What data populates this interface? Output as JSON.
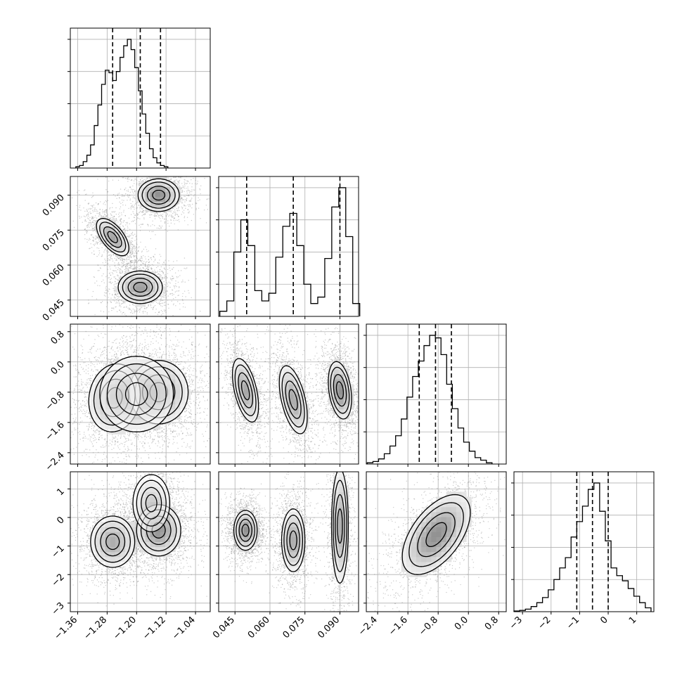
{
  "figure": {
    "type": "corner-plot",
    "grid": true,
    "histogram_color": "#000000",
    "density_color": "#000000",
    "scatter_color": "#808080"
  },
  "chart_data": [
    {
      "type": "histogram",
      "panel": "hist-param-1",
      "x_range": [
        -1.38,
        -1.0
      ],
      "ticks": [
        -1.36,
        -1.28,
        -1.2,
        -1.12,
        -1.04
      ],
      "tick_labels": [
        "−1.36",
        "−1.28",
        "−1.20",
        "−1.12",
        "−1.04"
      ],
      "quantiles": [
        -1.265,
        -1.19,
        -1.135
      ],
      "bins": [
        {
          "x": -1.36,
          "count": 0.01
        },
        {
          "x": -1.35,
          "count": 0.02
        },
        {
          "x": -1.34,
          "count": 0.05
        },
        {
          "x": -1.33,
          "count": 0.1
        },
        {
          "x": -1.32,
          "count": 0.18
        },
        {
          "x": -1.31,
          "count": 0.33
        },
        {
          "x": -1.3,
          "count": 0.49
        },
        {
          "x": -1.29,
          "count": 0.65
        },
        {
          "x": -1.28,
          "count": 0.76
        },
        {
          "x": -1.27,
          "count": 0.74
        },
        {
          "x": -1.26,
          "count": 0.68
        },
        {
          "x": -1.25,
          "count": 0.75
        },
        {
          "x": -1.24,
          "count": 0.86
        },
        {
          "x": -1.23,
          "count": 0.95
        },
        {
          "x": -1.22,
          "count": 1.0
        },
        {
          "x": -1.21,
          "count": 0.92
        },
        {
          "x": -1.2,
          "count": 0.78
        },
        {
          "x": -1.19,
          "count": 0.6
        },
        {
          "x": -1.18,
          "count": 0.42
        },
        {
          "x": -1.17,
          "count": 0.27
        },
        {
          "x": -1.16,
          "count": 0.15
        },
        {
          "x": -1.15,
          "count": 0.08
        },
        {
          "x": -1.14,
          "count": 0.04
        },
        {
          "x": -1.13,
          "count": 0.02
        },
        {
          "x": -1.12,
          "count": 0.01
        }
      ]
    },
    {
      "type": "histogram",
      "panel": "hist-param-2",
      "x_range": [
        0.038,
        0.098
      ],
      "ticks": [
        0.045,
        0.06,
        0.075,
        0.09
      ],
      "tick_labels": [
        "0.045",
        "0.060",
        "0.075",
        "0.090"
      ],
      "quantiles": [
        0.05,
        0.07,
        0.09
      ],
      "bins": [
        {
          "x": 0.04,
          "count": 0.04
        },
        {
          "x": 0.043,
          "count": 0.12
        },
        {
          "x": 0.046,
          "count": 0.5
        },
        {
          "x": 0.049,
          "count": 0.75
        },
        {
          "x": 0.052,
          "count": 0.55
        },
        {
          "x": 0.055,
          "count": 0.2
        },
        {
          "x": 0.058,
          "count": 0.12
        },
        {
          "x": 0.061,
          "count": 0.18
        },
        {
          "x": 0.064,
          "count": 0.46
        },
        {
          "x": 0.067,
          "count": 0.7
        },
        {
          "x": 0.07,
          "count": 0.8
        },
        {
          "x": 0.073,
          "count": 0.55
        },
        {
          "x": 0.076,
          "count": 0.25
        },
        {
          "x": 0.079,
          "count": 0.1
        },
        {
          "x": 0.082,
          "count": 0.15
        },
        {
          "x": 0.085,
          "count": 0.45
        },
        {
          "x": 0.088,
          "count": 0.85
        },
        {
          "x": 0.091,
          "count": 1.0
        },
        {
          "x": 0.094,
          "count": 0.62
        },
        {
          "x": 0.097,
          "count": 0.1
        }
      ]
    },
    {
      "type": "histogram",
      "panel": "hist-param-3",
      "x_range": [
        -2.7,
        1.0
      ],
      "ticks": [
        -2.4,
        -1.6,
        -0.8,
        0.0,
        0.8
      ],
      "tick_labels": [
        "−2.4",
        "−1.6",
        "−0.8",
        "0.0",
        "0.8"
      ],
      "quantiles": [
        -1.3,
        -0.87,
        -0.45
      ],
      "bins": [
        {
          "x": -2.6,
          "count": 0.01
        },
        {
          "x": -2.45,
          "count": 0.02
        },
        {
          "x": -2.3,
          "count": 0.04
        },
        {
          "x": -2.15,
          "count": 0.08
        },
        {
          "x": -2.0,
          "count": 0.14
        },
        {
          "x": -1.85,
          "count": 0.22
        },
        {
          "x": -1.7,
          "count": 0.35
        },
        {
          "x": -1.55,
          "count": 0.52
        },
        {
          "x": -1.4,
          "count": 0.68
        },
        {
          "x": -1.25,
          "count": 0.8
        },
        {
          "x": -1.1,
          "count": 0.92
        },
        {
          "x": -0.95,
          "count": 1.0
        },
        {
          "x": -0.8,
          "count": 0.98
        },
        {
          "x": -0.65,
          "count": 0.85
        },
        {
          "x": -0.5,
          "count": 0.62
        },
        {
          "x": -0.35,
          "count": 0.43
        },
        {
          "x": -0.2,
          "count": 0.28
        },
        {
          "x": -0.05,
          "count": 0.17
        },
        {
          "x": 0.1,
          "count": 0.1
        },
        {
          "x": 0.25,
          "count": 0.05
        },
        {
          "x": 0.4,
          "count": 0.03
        },
        {
          "x": 0.55,
          "count": 0.01
        }
      ]
    },
    {
      "type": "histogram",
      "panel": "hist-param-4",
      "x_range": [
        -3.3,
        1.6
      ],
      "ticks": [
        -3,
        -2,
        -1,
        0,
        1
      ],
      "tick_labels": [
        "−3",
        "−2",
        "−1",
        "0",
        "1"
      ],
      "quantiles": [
        -1.1,
        -0.55,
        0.0
      ],
      "bins": [
        {
          "x": -3.2,
          "count": 0.005
        },
        {
          "x": -3.0,
          "count": 0.01
        },
        {
          "x": -2.8,
          "count": 0.02
        },
        {
          "x": -2.6,
          "count": 0.04
        },
        {
          "x": -2.4,
          "count": 0.07
        },
        {
          "x": -2.2,
          "count": 0.11
        },
        {
          "x": -2.0,
          "count": 0.17
        },
        {
          "x": -1.8,
          "count": 0.25
        },
        {
          "x": -1.6,
          "count": 0.34
        },
        {
          "x": -1.4,
          "count": 0.42
        },
        {
          "x": -1.2,
          "count": 0.58
        },
        {
          "x": -1.0,
          "count": 0.7
        },
        {
          "x": -0.8,
          "count": 0.82
        },
        {
          "x": -0.6,
          "count": 0.95
        },
        {
          "x": -0.4,
          "count": 1.0
        },
        {
          "x": -0.2,
          "count": 0.78
        },
        {
          "x": 0.0,
          "count": 0.55
        },
        {
          "x": 0.2,
          "count": 0.34
        },
        {
          "x": 0.4,
          "count": 0.28
        },
        {
          "x": 0.6,
          "count": 0.24
        },
        {
          "x": 0.8,
          "count": 0.18
        },
        {
          "x": 1.0,
          "count": 0.12
        },
        {
          "x": 1.2,
          "count": 0.07
        },
        {
          "x": 1.4,
          "count": 0.03
        }
      ]
    },
    {
      "type": "heatmap",
      "panel": "density-2-vs-1",
      "x_range": [
        -1.38,
        -1.0
      ],
      "y_range": [
        0.038,
        0.098
      ],
      "y_ticks": [
        0.045,
        0.06,
        0.075,
        0.09
      ],
      "y_tick_labels": [
        "0.045",
        "0.060",
        "0.075",
        "0.090"
      ],
      "clusters": [
        {
          "cx": -1.14,
          "cy": 0.09,
          "sx": 0.028,
          "sy": 0.0035,
          "rho": 0.0,
          "w": 1.0
        },
        {
          "cx": -1.265,
          "cy": 0.072,
          "sx": 0.022,
          "sy": 0.004,
          "rho": -0.6,
          "w": 0.85
        },
        {
          "cx": -1.19,
          "cy": 0.0505,
          "sx": 0.03,
          "sy": 0.0035,
          "rho": 0.0,
          "w": 0.9
        }
      ]
    },
    {
      "type": "heatmap",
      "panel": "density-3-vs-1",
      "x_range": [
        -1.38,
        -1.0
      ],
      "y_range": [
        -2.7,
        1.0
      ],
      "y_ticks": [
        -2.4,
        -1.6,
        -0.8,
        0.0,
        0.8
      ],
      "y_tick_labels": [
        "−2.4",
        "−1.6",
        "−0.8",
        "0.0",
        "0.8"
      ],
      "clusters": [
        {
          "cx": -1.14,
          "cy": -0.8,
          "sx": 0.04,
          "sy": 0.42,
          "rho": 0.0,
          "w": 1.0
        },
        {
          "cx": -1.26,
          "cy": -0.95,
          "sx": 0.035,
          "sy": 0.45,
          "rho": 0.1,
          "w": 0.85
        },
        {
          "cx": -1.2,
          "cy": -0.85,
          "sx": 0.05,
          "sy": 0.5,
          "rho": 0.0,
          "w": 0.6
        }
      ]
    },
    {
      "type": "heatmap",
      "panel": "density-3-vs-2",
      "x_range": [
        0.038,
        0.098
      ],
      "y_range": [
        -2.7,
        1.0
      ],
      "clusters": [
        {
          "cx": 0.0495,
          "cy": -0.75,
          "sx": 0.0028,
          "sy": 0.42,
          "rho": -0.5,
          "w": 0.8
        },
        {
          "cx": 0.07,
          "cy": -1.0,
          "sx": 0.003,
          "sy": 0.45,
          "rho": -0.5,
          "w": 0.8
        },
        {
          "cx": 0.09,
          "cy": -0.75,
          "sx": 0.0025,
          "sy": 0.38,
          "rho": -0.3,
          "w": 1.0
        }
      ]
    },
    {
      "type": "heatmap",
      "panel": "density-4-vs-1",
      "x_range": [
        -1.38,
        -1.0
      ],
      "y_range": [
        -3.3,
        1.6
      ],
      "y_ticks": [
        -3,
        -2,
        -1,
        0,
        1
      ],
      "y_tick_labels": [
        "−3",
        "−2",
        "−1",
        "0",
        "1"
      ],
      "clusters": [
        {
          "cx": -1.14,
          "cy": -0.45,
          "sx": 0.03,
          "sy": 0.45,
          "rho": 0.0,
          "w": 1.0
        },
        {
          "cx": -1.265,
          "cy": -0.85,
          "sx": 0.03,
          "sy": 0.45,
          "rho": 0.0,
          "w": 0.8
        },
        {
          "cx": -1.16,
          "cy": 0.5,
          "sx": 0.025,
          "sy": 0.5,
          "rho": 0.0,
          "w": 0.45
        }
      ]
    },
    {
      "type": "heatmap",
      "panel": "density-4-vs-2",
      "x_range": [
        0.038,
        0.098
      ],
      "y_range": [
        -3.3,
        1.6
      ],
      "clusters": [
        {
          "cx": 0.0495,
          "cy": -0.45,
          "sx": 0.0025,
          "sy": 0.35,
          "rho": 0.0,
          "w": 1.0
        },
        {
          "cx": 0.07,
          "cy": -0.8,
          "sx": 0.0025,
          "sy": 0.55,
          "rho": 0.0,
          "w": 0.8
        },
        {
          "cx": 0.09,
          "cy": -0.3,
          "sx": 0.0018,
          "sy": 1.0,
          "rho": 0.0,
          "w": 0.75
        }
      ]
    },
    {
      "type": "heatmap",
      "panel": "density-4-vs-3",
      "x_range": [
        -2.7,
        1.0
      ],
      "y_range": [
        -3.3,
        1.6
      ],
      "clusters": [
        {
          "cx": -0.85,
          "cy": -0.6,
          "sx": 0.45,
          "sy": 0.7,
          "rho": 0.55,
          "w": 1.0
        }
      ]
    }
  ]
}
